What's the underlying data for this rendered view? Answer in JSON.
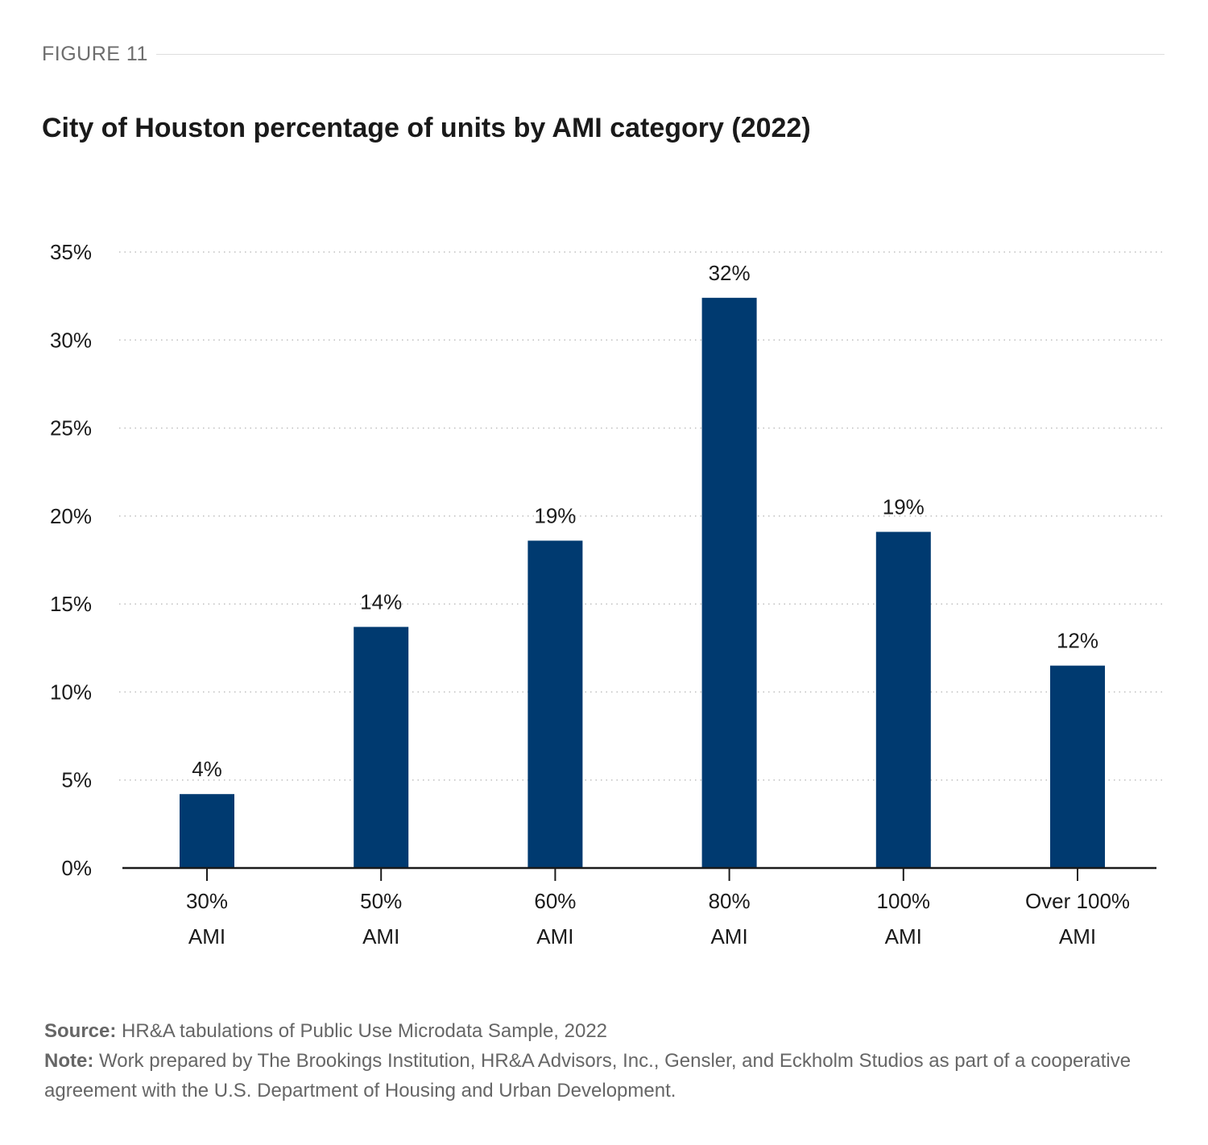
{
  "figure_label": "FIGURE 11",
  "title": "City of Houston percentage of units by AMI category (2022)",
  "footer": {
    "source_label": "Source:",
    "source_text": "HR&A tabulations of Public Use Microdata Sample, 2022",
    "note_label": "Note:",
    "note_text": "Work prepared by The Brookings Institution, HR&A Advisors, Inc., Gensler, and Eckholm Studios as part of a cooperative agreement with the U.S. Department of Housing and Urban Development."
  },
  "chart_data": {
    "type": "bar",
    "title": "City of Houston percentage of units by AMI category (2022)",
    "categories": [
      [
        "30%",
        "AMI"
      ],
      [
        "50%",
        "AMI"
      ],
      [
        "60%",
        "AMI"
      ],
      [
        "80%",
        "AMI"
      ],
      [
        "100%",
        "AMI"
      ],
      [
        "Over 100%",
        "AMI"
      ]
    ],
    "values": [
      4.2,
      13.7,
      18.6,
      32.4,
      19.1,
      11.5
    ],
    "data_labels": [
      "4%",
      "14%",
      "19%",
      "32%",
      "19%",
      "12%"
    ],
    "yticks": [
      0,
      5,
      10,
      15,
      20,
      25,
      30,
      35
    ],
    "ytick_labels": [
      "0%",
      "5%",
      "10%",
      "15%",
      "20%",
      "25%",
      "30%",
      "35%"
    ],
    "ylim": [
      0,
      35
    ],
    "xlabel": "",
    "ylabel": "",
    "grid": true,
    "bar_color": "#003a70",
    "axis_color": "#1a1a1a",
    "grid_color": "#bfbfbf"
  }
}
